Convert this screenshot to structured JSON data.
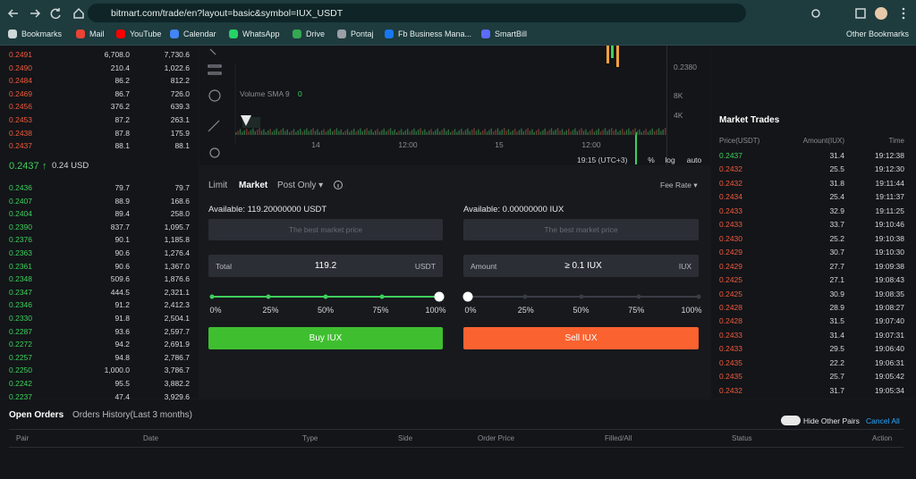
{
  "browser": {
    "url": "bitmart.com/trade/en?layout=basic&symbol=IUX_USDT",
    "bookmarks": [
      "Bookmarks",
      "Mail",
      "YouTube",
      "Calendar",
      "WhatsApp",
      "Drive",
      "Pontaj",
      "Fb Business Mana...",
      "SmartBill"
    ],
    "other_bookmarks": "Other Bookmarks"
  },
  "order_book": {
    "asks": [
      [
        "0.2491",
        "6,708.0",
        "7,730.6"
      ],
      [
        "0.2490",
        "210.4",
        "1,022.6"
      ],
      [
        "0.2484",
        "86.2",
        "812.2"
      ],
      [
        "0.2469",
        "86.7",
        "726.0"
      ],
      [
        "0.2456",
        "376.2",
        "639.3"
      ],
      [
        "0.2453",
        "87.2",
        "263.1"
      ],
      [
        "0.2438",
        "87.8",
        "175.9"
      ],
      [
        "0.2437",
        "88.1",
        "88.1"
      ]
    ],
    "last_price": "0.2437",
    "arrow": "↑",
    "last_price_usd": "0.24 USD",
    "bids": [
      [
        "0.2436",
        "79.7",
        "79.7"
      ],
      [
        "0.2407",
        "88.9",
        "168.6"
      ],
      [
        "0.2404",
        "89.4",
        "258.0"
      ],
      [
        "0.2390",
        "837.7",
        "1,095.7"
      ],
      [
        "0.2376",
        "90.1",
        "1,185.8"
      ],
      [
        "0.2363",
        "90.6",
        "1,276.4"
      ],
      [
        "0.2361",
        "90.6",
        "1,367.0"
      ],
      [
        "0.2348",
        "509.6",
        "1,876.6"
      ],
      [
        "0.2347",
        "444.5",
        "2,321.1"
      ],
      [
        "0.2346",
        "91.2",
        "2,412.3"
      ],
      [
        "0.2330",
        "91.8",
        "2,504.1"
      ],
      [
        "0.2287",
        "93.6",
        "2,597.7"
      ],
      [
        "0.2272",
        "94.2",
        "2,691.9"
      ],
      [
        "0.2257",
        "94.8",
        "2,786.7"
      ],
      [
        "0.2250",
        "1,000.0",
        "3,786.7"
      ],
      [
        "0.2242",
        "95.5",
        "3,882.2"
      ],
      [
        "0.2237",
        "47.4",
        "3,929.6"
      ]
    ]
  },
  "chart": {
    "indicator": "Volume SMA 9",
    "indicator_value": "0",
    "price_label": "0.2380",
    "volume_ticks": [
      "8K",
      "4K"
    ],
    "time_ticks": [
      "14",
      "12:00",
      "15",
      "12:00"
    ],
    "clock": "19:15 (UTC+3)",
    "options": [
      "%",
      "log",
      "auto"
    ]
  },
  "order_form": {
    "tabs": [
      "Limit",
      "Market",
      "Post Only ▾"
    ],
    "fee_rate": "Fee Rate ▾",
    "buy": {
      "available": "Available: 119.20000000 USDT",
      "placeholder": "The best market price",
      "field_label": "Total",
      "field_value": "119.2",
      "field_unit": "USDT",
      "slider": [
        "0%",
        "25%",
        "50%",
        "75%",
        "100%"
      ],
      "button": "Buy IUX"
    },
    "sell": {
      "available": "Available: 0.00000000 IUX",
      "placeholder": "The best market price",
      "field_label": "Amount",
      "field_value": "≥ 0.1 IUX",
      "field_unit": "IUX",
      "slider": [
        "0%",
        "25%",
        "50%",
        "75%",
        "100%"
      ],
      "button": "Sell IUX"
    }
  },
  "market_trades": {
    "title": "Market Trades",
    "headers": [
      "Price(USDT)",
      "Amount(IUX)",
      "Time"
    ],
    "rows": [
      [
        "0.2437",
        "31.4",
        "19:12:38"
      ],
      [
        "0.2432",
        "25.5",
        "19:12:30"
      ],
      [
        "0.2432",
        "31.8",
        "19:11:44"
      ],
      [
        "0.2434",
        "25.4",
        "19:11:37"
      ],
      [
        "0.2433",
        "32.9",
        "19:11:25"
      ],
      [
        "0.2433",
        "33.7",
        "19:10:46"
      ],
      [
        "0.2430",
        "25.2",
        "19:10:38"
      ],
      [
        "0.2429",
        "30.7",
        "19:10:30"
      ],
      [
        "0.2429",
        "27.7",
        "19:09:38"
      ],
      [
        "0.2425",
        "27.1",
        "19:08:43"
      ],
      [
        "0.2425",
        "30.9",
        "19:08:35"
      ],
      [
        "0.2428",
        "28.9",
        "19:08:27"
      ],
      [
        "0.2428",
        "31.5",
        "19:07:40"
      ],
      [
        "0.2433",
        "31.4",
        "19:07:31"
      ],
      [
        "0.2433",
        "29.5",
        "19:06:40"
      ],
      [
        "0.2435",
        "22.2",
        "19:06:31"
      ],
      [
        "0.2435",
        "25.7",
        "19:05:42"
      ],
      [
        "0.2432",
        "31.7",
        "19:05:34"
      ]
    ],
    "row_colors": [
      "#3fcf5c",
      "#f05a3c",
      "#f05a3c",
      "#f05a3c",
      "#f05a3c",
      "#f05a3c",
      "#f05a3c",
      "#f05a3c",
      "#f05a3c",
      "#f05a3c",
      "#f05a3c",
      "#f05a3c",
      "#f05a3c",
      "#f05a3c",
      "#f05a3c",
      "#f05a3c",
      "#f05a3c",
      "#f05a3c"
    ]
  },
  "orders": {
    "tabs": [
      "Open Orders",
      "Orders History(Last 3 months)"
    ],
    "hide_other_pairs": "Hide Other Pairs",
    "cancel_all": "Cancel All",
    "columns": [
      "Pair",
      "Date",
      "Type",
      "Side",
      "Order Price",
      "Filled/All",
      "Status",
      "Action"
    ]
  }
}
